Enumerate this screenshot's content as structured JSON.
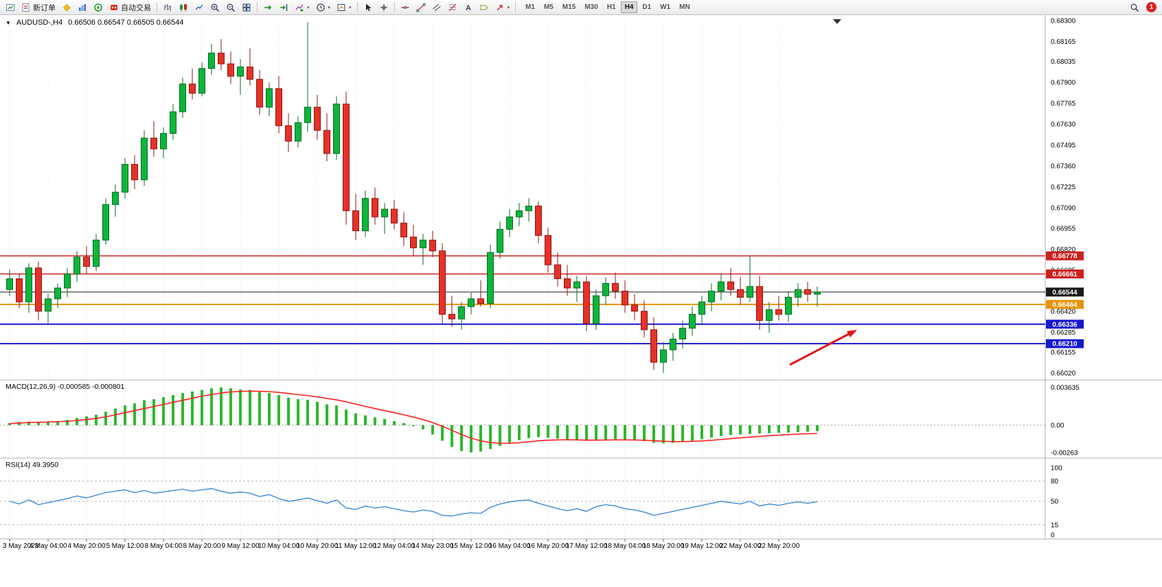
{
  "toolbar": {
    "new_order_label": "新订单",
    "auto_trading_label": "自动交易",
    "timeframes": [
      "M1",
      "M5",
      "M15",
      "M30",
      "H1",
      "H4",
      "D1",
      "W1",
      "MN"
    ],
    "active_timeframe": "H4",
    "notification_count": "1",
    "icon_names": [
      "new-chart-icon",
      "new-order-icon",
      "mql-community-icon",
      "market-watch-icon",
      "community-icon",
      "auto-trading-icon",
      "bar-chart-icon",
      "candlestick-chart-icon",
      "line-chart-icon",
      "zoom-in-icon",
      "zoom-out-icon",
      "tile-windows-icon",
      "auto-scroll-icon",
      "chart-shift-icon",
      "indicators-icon",
      "periods-icon",
      "templates-icon",
      "cursor-icon",
      "crosshair-icon",
      "horizontal-line-icon",
      "trendline-icon",
      "channel-icon",
      "fibonacci-icon",
      "text-icon",
      "label-icon",
      "arrows-icon",
      "search-icon",
      "notification-badge"
    ]
  },
  "chart": {
    "collapse_marker": "▼",
    "symbol_title": "AUDUSD-,H4",
    "ohlc_text": "0.66506 0.66547 0.66505 0.66544"
  },
  "chart_data": {
    "type": "candlestick",
    "title": "AUDUSD-,H4",
    "ohlc_display": [
      "0.66506",
      "0.66547",
      "0.66505",
      "0.66544"
    ],
    "price_scale": 100000,
    "price_axis_ticks": [
      "0.68300",
      "0.68165",
      "0.68035",
      "0.67900",
      "0.67765",
      "0.67630",
      "0.67495",
      "0.67360",
      "0.67225",
      "0.67090",
      "0.66955",
      "0.66820",
      "0.66685",
      "0.66550",
      "0.66420",
      "0.66285",
      "0.66155",
      "0.66020"
    ],
    "time_labels": [
      "3 May 2023",
      "4 May 04:00",
      "4 May 20:00",
      "5 May 12:00",
      "8 May 04:00",
      "8 May 20:00",
      "9 May 12:00",
      "10 May 04:00",
      "10 May 20:00",
      "11 May 12:00",
      "12 May 04:00",
      "14 May 23:00",
      "15 May 12:00",
      "16 May 04:00",
      "16 May 20:00",
      "17 May 12:00",
      "18 May 04:00",
      "18 May 20:00",
      "19 May 12:00",
      "22 May 04:00",
      "22 May 20:00"
    ],
    "candles": [
      [
        66560,
        66690,
        66520,
        66630
      ],
      [
        66630,
        66660,
        66440,
        66480
      ],
      [
        66480,
        66730,
        66410,
        66700
      ],
      [
        66700,
        66740,
        66360,
        66420
      ],
      [
        66420,
        66530,
        66340,
        66500
      ],
      [
        66500,
        66600,
        66440,
        66570
      ],
      [
        66570,
        66700,
        66510,
        66660
      ],
      [
        66660,
        66810,
        66610,
        66770
      ],
      [
        66770,
        66840,
        66660,
        66710
      ],
      [
        66710,
        66920,
        66680,
        66880
      ],
      [
        66880,
        67150,
        66850,
        67110
      ],
      [
        67110,
        67240,
        67030,
        67190
      ],
      [
        67190,
        67410,
        67150,
        67370
      ],
      [
        67370,
        67430,
        67210,
        67270
      ],
      [
        67270,
        67590,
        67230,
        67540
      ],
      [
        67540,
        67650,
        67420,
        67470
      ],
      [
        67470,
        67610,
        67410,
        67570
      ],
      [
        67570,
        67760,
        67530,
        67710
      ],
      [
        67710,
        67930,
        67670,
        67890
      ],
      [
        67890,
        67990,
        67790,
        67830
      ],
      [
        67830,
        68030,
        67810,
        67990
      ],
      [
        67990,
        68150,
        67950,
        68090
      ],
      [
        68090,
        68180,
        67980,
        68020
      ],
      [
        68020,
        68100,
        67890,
        67940
      ],
      [
        67940,
        68050,
        67820,
        68000
      ],
      [
        68000,
        68120,
        67880,
        67920
      ],
      [
        67920,
        67980,
        67690,
        67740
      ],
      [
        67740,
        67900,
        67680,
        67860
      ],
      [
        67860,
        67940,
        67570,
        67620
      ],
      [
        67620,
        67700,
        67450,
        67520
      ],
      [
        67520,
        67680,
        67480,
        67640
      ],
      [
        67640,
        68290,
        67580,
        67740
      ],
      [
        67740,
        67820,
        67530,
        67590
      ],
      [
        67590,
        67700,
        67390,
        67440
      ],
      [
        67440,
        67810,
        67400,
        67760
      ],
      [
        67760,
        67840,
        66980,
        67070
      ],
      [
        67070,
        67180,
        66880,
        66940
      ],
      [
        66940,
        67200,
        66900,
        67150
      ],
      [
        67150,
        67220,
        66980,
        67030
      ],
      [
        67030,
        67120,
        66920,
        67080
      ],
      [
        67080,
        67140,
        66950,
        66990
      ],
      [
        66990,
        67060,
        66840,
        66900
      ],
      [
        66900,
        66980,
        66780,
        66830
      ],
      [
        66830,
        66920,
        66720,
        66880
      ],
      [
        66880,
        66940,
        66770,
        66810
      ],
      [
        66810,
        66860,
        66340,
        66400
      ],
      [
        66400,
        66520,
        66320,
        66370
      ],
      [
        66370,
        66480,
        66300,
        66450
      ],
      [
        66450,
        66540,
        66400,
        66500
      ],
      [
        66500,
        66620,
        66450,
        66470
      ],
      [
        66470,
        66850,
        66440,
        66800
      ],
      [
        66800,
        67000,
        66760,
        66950
      ],
      [
        66950,
        67080,
        66900,
        67030
      ],
      [
        67030,
        67120,
        66970,
        67070
      ],
      [
        67070,
        67150,
        67000,
        67100
      ],
      [
        67100,
        67130,
        66860,
        66910
      ],
      [
        66910,
        66960,
        66670,
        66720
      ],
      [
        66720,
        66800,
        66580,
        66630
      ],
      [
        66630,
        66720,
        66520,
        66570
      ],
      [
        66570,
        66650,
        66480,
        66610
      ],
      [
        66610,
        66650,
        66290,
        66340
      ],
      [
        66340,
        66560,
        66300,
        66520
      ],
      [
        66520,
        66640,
        66460,
        66600
      ],
      [
        66600,
        66670,
        66500,
        66550
      ],
      [
        66550,
        66620,
        66410,
        66460
      ],
      [
        66460,
        66530,
        66360,
        66420
      ],
      [
        66420,
        66490,
        66250,
        66300
      ],
      [
        66300,
        66380,
        66040,
        66090
      ],
      [
        66090,
        66220,
        66020,
        66170
      ],
      [
        66170,
        66280,
        66100,
        66240
      ],
      [
        66240,
        66360,
        66180,
        66310
      ],
      [
        66310,
        66450,
        66260,
        66400
      ],
      [
        66400,
        66520,
        66340,
        66480
      ],
      [
        66480,
        66600,
        66420,
        66550
      ],
      [
        66550,
        66660,
        66490,
        66610
      ],
      [
        66610,
        66700,
        66520,
        66560
      ],
      [
        66560,
        66640,
        66460,
        66510
      ],
      [
        66510,
        66780,
        66480,
        66580
      ],
      [
        66580,
        66650,
        66300,
        66360
      ],
      [
        66360,
        66480,
        66280,
        66430
      ],
      [
        66430,
        66520,
        66360,
        66400
      ],
      [
        66400,
        66550,
        66350,
        66510
      ],
      [
        66510,
        66600,
        66450,
        66560
      ],
      [
        66560,
        66610,
        66480,
        66530
      ],
      [
        66530,
        66580,
        66450,
        66544
      ]
    ],
    "horizontal_lines": [
      {
        "price": 0.66778,
        "label": "0.66778",
        "color": "#cc2020",
        "width": 1.5
      },
      {
        "price": 0.66661,
        "label": "0.66661",
        "color": "#cc2020",
        "width": 1.5
      },
      {
        "price": 0.66464,
        "label": "0.66464",
        "color": "#e8920a",
        "width": 2
      },
      {
        "price": 0.66336,
        "label": "0.66336",
        "color": "#1717cf",
        "width": 2
      },
      {
        "price": 0.6621,
        "label": "0.66210",
        "color": "#1717cf",
        "width": 2
      }
    ],
    "current_price": {
      "price": 0.66544,
      "label": "0.66544",
      "color": "#1a1a1a",
      "width": 1
    },
    "arrow_annotation": {
      "color": "#e01616"
    },
    "colors": {
      "bull": "#0db53c",
      "bull_border": "#066a20",
      "bear": "#e53228",
      "bear_border": "#8e1410",
      "grid": "#e2e2e2",
      "macd_histogram": "#2eb82e",
      "macd_signal": "#ff1f1f",
      "rsi_line": "#3d8bd4"
    },
    "macd": {
      "label": "MACD(12,26,9)",
      "value_main": "-0.000585",
      "value_signal": "-0.000801",
      "scale_labels": [
        "0.003635",
        "0.00",
        "-0.00263"
      ],
      "value_scale": 1000000,
      "main": [
        200,
        300,
        350,
        300,
        350,
        400,
        500,
        700,
        850,
        1000,
        1300,
        1600,
        1900,
        2100,
        2400,
        2500,
        2700,
        2900,
        3100,
        3250,
        3400,
        3550,
        3635,
        3550,
        3450,
        3400,
        3200,
        3100,
        2900,
        2650,
        2500,
        2450,
        2250,
        2000,
        1900,
        1500,
        1150,
        950,
        750,
        600,
        400,
        200,
        -100,
        -400,
        -900,
        -1500,
        -2100,
        -2500,
        -2630,
        -2550,
        -2300,
        -2000,
        -1700,
        -1450,
        -1250,
        -1150,
        -1200,
        -1300,
        -1400,
        -1450,
        -1500,
        -1450,
        -1400,
        -1350,
        -1400,
        -1450,
        -1550,
        -1700,
        -1750,
        -1700,
        -1600,
        -1500,
        -1350,
        -1200,
        -1050,
        -950,
        -900,
        -850,
        -800,
        -780,
        -750,
        -720,
        -680,
        -630,
        -585
      ],
      "signal": [
        150,
        200,
        250,
        280,
        300,
        330,
        380,
        450,
        550,
        650,
        800,
        1000,
        1200,
        1400,
        1600,
        1800,
        2000,
        2200,
        2400,
        2600,
        2800,
        2950,
        3100,
        3200,
        3250,
        3280,
        3270,
        3230,
        3160,
        3050,
        2950,
        2850,
        2730,
        2580,
        2440,
        2250,
        2030,
        1810,
        1600,
        1400,
        1200,
        1000,
        780,
        540,
        250,
        -100,
        -500,
        -900,
        -1250,
        -1510,
        -1670,
        -1740,
        -1750,
        -1690,
        -1600,
        -1510,
        -1450,
        -1420,
        -1410,
        -1420,
        -1440,
        -1440,
        -1430,
        -1420,
        -1420,
        -1430,
        -1450,
        -1500,
        -1550,
        -1580,
        -1580,
        -1560,
        -1520,
        -1460,
        -1380,
        -1300,
        -1220,
        -1150,
        -1080,
        -1020,
        -960,
        -910,
        -860,
        -830,
        -801
      ]
    },
    "rsi": {
      "label": "RSI(14)",
      "value": "49.3950",
      "scale_labels": [
        "100",
        "80",
        "50",
        "15",
        "0"
      ],
      "levels": [
        80,
        50,
        15
      ],
      "values": [
        50,
        46,
        52,
        45,
        48,
        51,
        54,
        58,
        55,
        59,
        63,
        65,
        67,
        63,
        66,
        62,
        64,
        66,
        68,
        65,
        67,
        69,
        65,
        62,
        64,
        62,
        57,
        60,
        54,
        50,
        52,
        55,
        51,
        47,
        52,
        40,
        38,
        43,
        40,
        42,
        39,
        36,
        34,
        37,
        35,
        29,
        28,
        31,
        33,
        32,
        41,
        46,
        49,
        51,
        52,
        47,
        43,
        39,
        36,
        39,
        35,
        42,
        45,
        43,
        39,
        37,
        34,
        29,
        32,
        35,
        38,
        41,
        44,
        47,
        50,
        48,
        46,
        50,
        43,
        46,
        44,
        47,
        49,
        47,
        49.4
      ]
    }
  }
}
